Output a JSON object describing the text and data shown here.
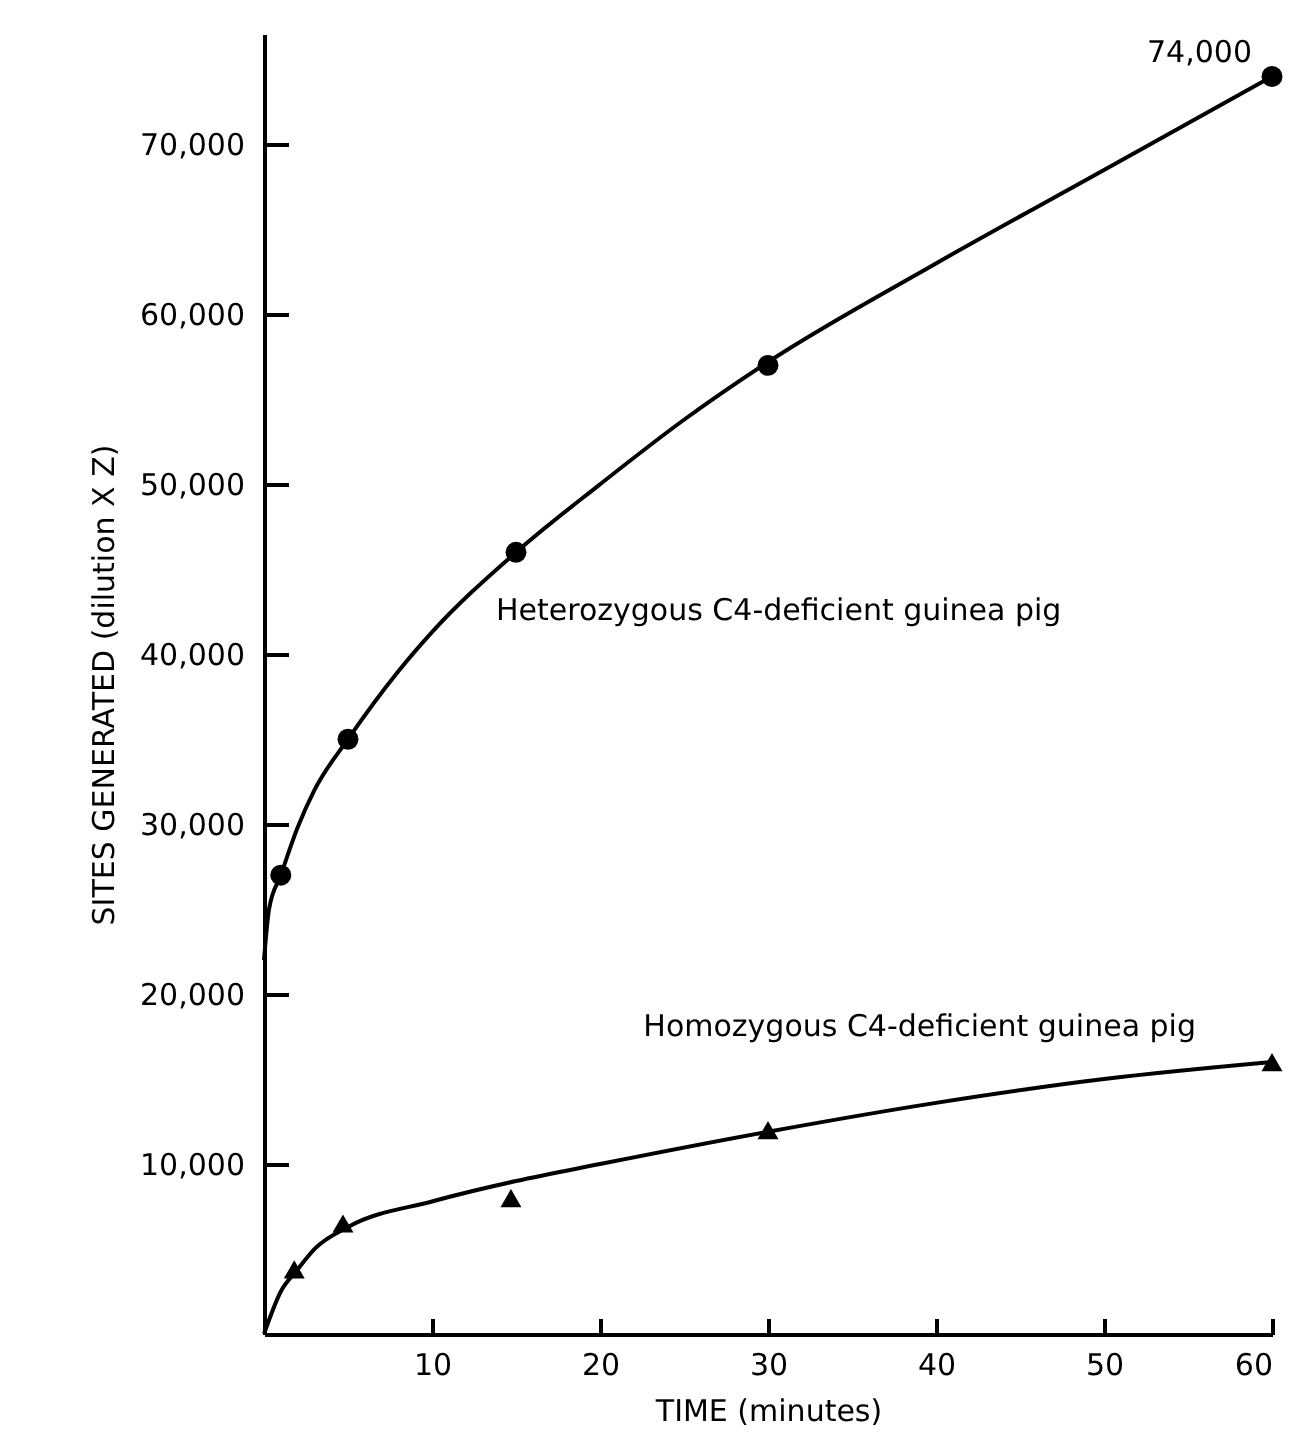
{
  "chart_data": {
    "type": "scatter",
    "xlabel": "TIME (minutes)",
    "ylabel": "SITES GENERATED (dilution X Z)",
    "xlim": [
      0,
      60
    ],
    "xticks": [
      10,
      20,
      30,
      40,
      50,
      60
    ],
    "ylim": [
      0,
      76500
    ],
    "yticks": [
      {
        "value": 10000,
        "label": "10,000"
      },
      {
        "value": 20000,
        "label": "20,000"
      },
      {
        "value": 30000,
        "label": "30,000"
      },
      {
        "value": 40000,
        "label": "40,000"
      },
      {
        "value": 50000,
        "label": "50,000"
      },
      {
        "value": 60000,
        "label": "60,000"
      },
      {
        "value": 70000,
        "label": "70,000"
      }
    ],
    "grid": false,
    "legend": false,
    "annotations": [
      {
        "text": "74,000",
        "x": 60,
        "y": 74000
      }
    ],
    "series": [
      {
        "name": "Heterozygous  C4-deficient guinea pig",
        "marker": "circle",
        "color": "#000000",
        "x": [
          1,
          5,
          15,
          30,
          60
        ],
        "values": [
          27000,
          35000,
          46000,
          57000,
          74000
        ]
      },
      {
        "type": "line",
        "color": "#000000",
        "x": [
          0,
          0.3,
          1,
          2,
          3,
          5,
          8,
          10,
          15,
          20,
          25,
          30,
          40,
          50,
          60
        ],
        "values": [
          22000,
          25000,
          27000,
          29800,
          32000,
          35000,
          39000,
          41300,
          46000,
          50000,
          53800,
          57200,
          63000,
          68500,
          74000
        ]
      },
      {
        "name": "Homozygous  C4-deficient guinea pig",
        "marker": "triangle",
        "color": "#000000",
        "x": [
          1.8,
          4.7,
          14.7,
          30,
          60
        ],
        "values": [
          3800,
          6500,
          8000,
          12000,
          16000
        ]
      },
      {
        "type": "line",
        "color": "#000000",
        "x": [
          0,
          1,
          2,
          3,
          5,
          10,
          15,
          20,
          30,
          40,
          50,
          60
        ],
        "values": [
          0,
          2500,
          3800,
          5000,
          6300,
          7800,
          9000,
          10000,
          11900,
          13600,
          15000,
          16000
        ]
      }
    ]
  }
}
